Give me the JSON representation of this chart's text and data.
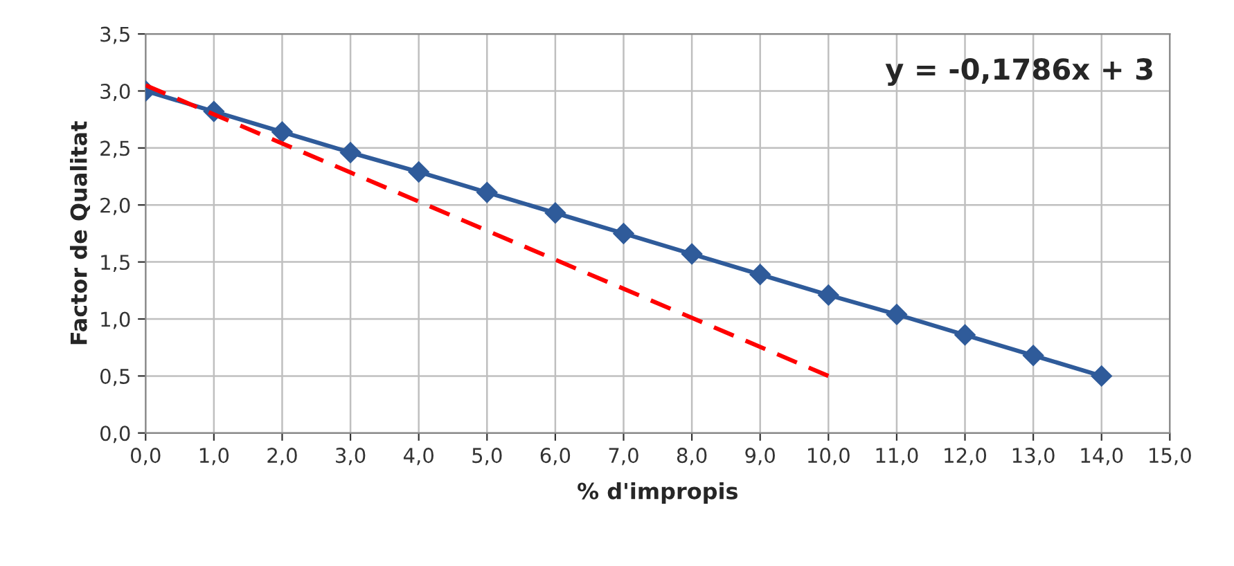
{
  "chart_data": {
    "type": "line",
    "xlabel": "% d'impropis",
    "ylabel": "Factor de Qualitat",
    "x": [
      0,
      1,
      2,
      3,
      4,
      5,
      6,
      7,
      8,
      9,
      10,
      11,
      12,
      13,
      14
    ],
    "series": [
      {
        "color": "#2f5b9a",
        "marker": "diamond",
        "line_style": "solid",
        "values": [
          3.0,
          2.82,
          2.64,
          2.46,
          2.29,
          2.11,
          1.93,
          1.75,
          1.57,
          1.39,
          1.21,
          1.04,
          0.86,
          0.68,
          0.5
        ]
      },
      {
        "color": "#ff0000",
        "marker": "none",
        "line_style": "dashed",
        "x": [
          0,
          10
        ],
        "values": [
          3.05,
          0.5
        ]
      }
    ],
    "xlim": [
      0,
      15
    ],
    "ylim": [
      0,
      3.5
    ],
    "xticks": [
      {
        "value": 0,
        "label": "0,0"
      },
      {
        "value": 1,
        "label": "1,0"
      },
      {
        "value": 2,
        "label": "2,0"
      },
      {
        "value": 3,
        "label": "3,0"
      },
      {
        "value": 4,
        "label": "4,0"
      },
      {
        "value": 5,
        "label": "5,0"
      },
      {
        "value": 6,
        "label": "6,0"
      },
      {
        "value": 7,
        "label": "7,0"
      },
      {
        "value": 8,
        "label": "8,0"
      },
      {
        "value": 9,
        "label": "9,0"
      },
      {
        "value": 10,
        "label": "10,0"
      },
      {
        "value": 11,
        "label": "11,0"
      },
      {
        "value": 12,
        "label": "12,0"
      },
      {
        "value": 13,
        "label": "13,0"
      },
      {
        "value": 14,
        "label": "14,0"
      },
      {
        "value": 15,
        "label": "15,0"
      }
    ],
    "yticks": [
      {
        "value": 0,
        "label": "0,0"
      },
      {
        "value": 0.5,
        "label": "0,5"
      },
      {
        "value": 1,
        "label": "1,0"
      },
      {
        "value": 1.5,
        "label": "1,5"
      },
      {
        "value": 2,
        "label": "2,0"
      },
      {
        "value": 2.5,
        "label": "2,5"
      },
      {
        "value": 3,
        "label": "3,0"
      },
      {
        "value": 3.5,
        "label": "3,5"
      }
    ],
    "grid": true,
    "legend": false,
    "annotations": [
      "y = -0,1786x + 3"
    ]
  }
}
